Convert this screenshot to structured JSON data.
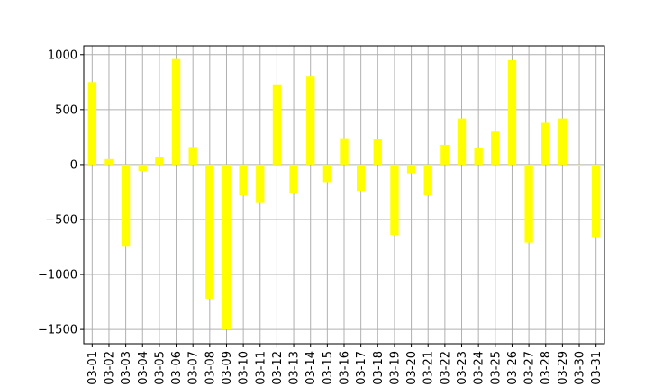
{
  "chart_data": {
    "type": "bar",
    "categories": [
      "03-01",
      "03-02",
      "03-03",
      "03-04",
      "03-05",
      "03-06",
      "03-07",
      "03-08",
      "03-09",
      "03-10",
      "03-11",
      "03-12",
      "03-13",
      "03-14",
      "03-15",
      "03-16",
      "03-17",
      "03-18",
      "03-19",
      "03-20",
      "03-21",
      "03-22",
      "03-23",
      "03-24",
      "03-25",
      "03-26",
      "03-27",
      "03-28",
      "03-29",
      "03-30",
      "03-31"
    ],
    "values": [
      750,
      50,
      -740,
      -60,
      70,
      960,
      160,
      -1220,
      -1500,
      -280,
      -350,
      730,
      -260,
      800,
      -160,
      240,
      -240,
      230,
      -640,
      -80,
      -280,
      180,
      420,
      150,
      300,
      950,
      -710,
      380,
      420,
      -10,
      -660
    ],
    "ylim": [
      -1630,
      1080
    ],
    "yticks": [
      1000,
      500,
      0,
      -500,
      -1000,
      -1500
    ],
    "ytick_labels": [
      "1000",
      "500",
      "0",
      "−500",
      "−1000",
      "−1500"
    ],
    "bar_color": "#ffff00",
    "grid": true,
    "title": "",
    "xlabel": "",
    "ylabel": ""
  }
}
